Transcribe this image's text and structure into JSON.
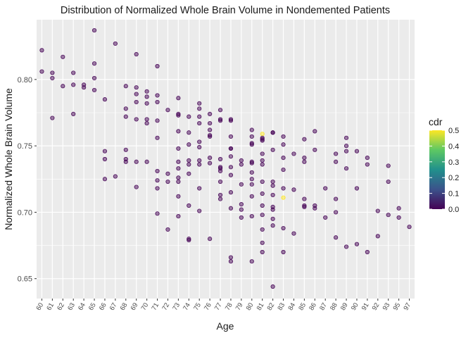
{
  "chart_data": {
    "type": "scatter",
    "title": "Distribution of Normalized Whole Brain Volume in Nondemented Patients",
    "xlabel": "Age",
    "ylabel": "Normalized Whole Brain Volume",
    "x_categories": [
      "60",
      "61",
      "62",
      "63",
      "64",
      "65",
      "66",
      "67",
      "68",
      "69",
      "70",
      "71",
      "72",
      "73",
      "74",
      "75",
      "76",
      "77",
      "78",
      "79",
      "80",
      "81",
      "82",
      "83",
      "84",
      "85",
      "86",
      "87",
      "88",
      "89",
      "90",
      "91",
      "92",
      "93",
      "95",
      "97"
    ],
    "y_ticks": [
      "0.65",
      "0.70",
      "0.75",
      "0.80"
    ],
    "y_tick_values": [
      0.65,
      0.7,
      0.75,
      0.8
    ],
    "ylim": [
      0.635,
      0.845
    ],
    "grid": true,
    "background_color": "#EBEBEB",
    "legend": {
      "title": "cdr",
      "position": "right",
      "labels": [
        "0.5",
        "0.4",
        "0.3",
        "0.2",
        "0.1",
        "0.0"
      ],
      "label_values": [
        0.5,
        0.4,
        0.3,
        0.2,
        0.1,
        0.0
      ],
      "range": [
        0,
        0.5
      ],
      "colormap": [
        "#440154",
        "#3B528B",
        "#21908C",
        "#5DC863",
        "#FDE725"
      ]
    },
    "points": [
      {
        "x": "60",
        "y": 0.822,
        "cdr": 0
      },
      {
        "x": "60",
        "y": 0.806,
        "cdr": 0
      },
      {
        "x": "61",
        "y": 0.805,
        "cdr": 0
      },
      {
        "x": "61",
        "y": 0.801,
        "cdr": 0
      },
      {
        "x": "61",
        "y": 0.771,
        "cdr": 0
      },
      {
        "x": "62",
        "y": 0.817,
        "cdr": 0
      },
      {
        "x": "62",
        "y": 0.795,
        "cdr": 0
      },
      {
        "x": "63",
        "y": 0.805,
        "cdr": 0
      },
      {
        "x": "63",
        "y": 0.796,
        "cdr": 0
      },
      {
        "x": "63",
        "y": 0.774,
        "cdr": 0
      },
      {
        "x": "64",
        "y": 0.796,
        "cdr": 0
      },
      {
        "x": "64",
        "y": 0.794,
        "cdr": 0
      },
      {
        "x": "65",
        "y": 0.837,
        "cdr": 0
      },
      {
        "x": "65",
        "y": 0.812,
        "cdr": 0
      },
      {
        "x": "65",
        "y": 0.801,
        "cdr": 0
      },
      {
        "x": "65",
        "y": 0.792,
        "cdr": 0
      },
      {
        "x": "66",
        "y": 0.785,
        "cdr": 0
      },
      {
        "x": "66",
        "y": 0.746,
        "cdr": 0
      },
      {
        "x": "66",
        "y": 0.74,
        "cdr": 0
      },
      {
        "x": "66",
        "y": 0.725,
        "cdr": 0
      },
      {
        "x": "67",
        "y": 0.827,
        "cdr": 0
      },
      {
        "x": "67",
        "y": 0.727,
        "cdr": 0
      },
      {
        "x": "68",
        "y": 0.795,
        "cdr": 0
      },
      {
        "x": "68",
        "y": 0.778,
        "cdr": 0
      },
      {
        "x": "68",
        "y": 0.772,
        "cdr": 0
      },
      {
        "x": "68",
        "y": 0.747,
        "cdr": 0
      },
      {
        "x": "68",
        "y": 0.74,
        "cdr": 0
      },
      {
        "x": "68",
        "y": 0.738,
        "cdr": 0
      },
      {
        "x": "69",
        "y": 0.819,
        "cdr": 0
      },
      {
        "x": "69",
        "y": 0.794,
        "cdr": 0
      },
      {
        "x": "69",
        "y": 0.789,
        "cdr": 0
      },
      {
        "x": "69",
        "y": 0.783,
        "cdr": 0
      },
      {
        "x": "69",
        "y": 0.77,
        "cdr": 0
      },
      {
        "x": "69",
        "y": 0.738,
        "cdr": 0
      },
      {
        "x": "69",
        "y": 0.719,
        "cdr": 0
      },
      {
        "x": "70",
        "y": 0.791,
        "cdr": 0
      },
      {
        "x": "70",
        "y": 0.787,
        "cdr": 0
      },
      {
        "x": "70",
        "y": 0.782,
        "cdr": 0
      },
      {
        "x": "70",
        "y": 0.77,
        "cdr": 0
      },
      {
        "x": "70",
        "y": 0.767,
        "cdr": 0
      },
      {
        "x": "70",
        "y": 0.738,
        "cdr": 0
      },
      {
        "x": "71",
        "y": 0.81,
        "cdr": 0
      },
      {
        "x": "71",
        "y": 0.788,
        "cdr": 0
      },
      {
        "x": "71",
        "y": 0.783,
        "cdr": 0
      },
      {
        "x": "71",
        "y": 0.769,
        "cdr": 0
      },
      {
        "x": "71",
        "y": 0.756,
        "cdr": 0
      },
      {
        "x": "71",
        "y": 0.731,
        "cdr": 0
      },
      {
        "x": "71",
        "y": 0.724,
        "cdr": 0
      },
      {
        "x": "71",
        "y": 0.718,
        "cdr": 0
      },
      {
        "x": "71",
        "y": 0.699,
        "cdr": 0
      },
      {
        "x": "72",
        "y": 0.777,
        "cdr": 0
      },
      {
        "x": "72",
        "y": 0.729,
        "cdr": 0
      },
      {
        "x": "72",
        "y": 0.723,
        "cdr": 0
      },
      {
        "x": "72",
        "y": 0.687,
        "cdr": 0
      },
      {
        "x": "73",
        "y": 0.786,
        "cdr": 0
      },
      {
        "x": "73",
        "y": 0.774,
        "cdr": 0
      },
      {
        "x": "73",
        "y": 0.773,
        "cdr": 0
      },
      {
        "x": "73",
        "y": 0.761,
        "cdr": 0
      },
      {
        "x": "73",
        "y": 0.748,
        "cdr": 0
      },
      {
        "x": "73",
        "y": 0.738,
        "cdr": 0
      },
      {
        "x": "73",
        "y": 0.733,
        "cdr": 0
      },
      {
        "x": "73",
        "y": 0.726,
        "cdr": 0
      },
      {
        "x": "73",
        "y": 0.723,
        "cdr": 0
      },
      {
        "x": "73",
        "y": 0.712,
        "cdr": 0
      },
      {
        "x": "73",
        "y": 0.697,
        "cdr": 0
      },
      {
        "x": "74",
        "y": 0.772,
        "cdr": 0
      },
      {
        "x": "74",
        "y": 0.76,
        "cdr": 0
      },
      {
        "x": "74",
        "y": 0.751,
        "cdr": 0
      },
      {
        "x": "74",
        "y": 0.739,
        "cdr": 0
      },
      {
        "x": "74",
        "y": 0.736,
        "cdr": 0
      },
      {
        "x": "74",
        "y": 0.729,
        "cdr": 0
      },
      {
        "x": "74",
        "y": 0.705,
        "cdr": 0
      },
      {
        "x": "74",
        "y": 0.68,
        "cdr": 0
      },
      {
        "x": "74",
        "y": 0.679,
        "cdr": 0
      },
      {
        "x": "75",
        "y": 0.782,
        "cdr": 0
      },
      {
        "x": "75",
        "y": 0.778,
        "cdr": 0
      },
      {
        "x": "75",
        "y": 0.772,
        "cdr": 0
      },
      {
        "x": "75",
        "y": 0.767,
        "cdr": 0
      },
      {
        "x": "75",
        "y": 0.753,
        "cdr": 0
      },
      {
        "x": "75",
        "y": 0.749,
        "cdr": 0
      },
      {
        "x": "75",
        "y": 0.739,
        "cdr": 0
      },
      {
        "x": "75",
        "y": 0.736,
        "cdr": 0
      },
      {
        "x": "75",
        "y": 0.718,
        "cdr": 0
      },
      {
        "x": "75",
        "y": 0.701,
        "cdr": 0
      },
      {
        "x": "76",
        "y": 0.774,
        "cdr": 0
      },
      {
        "x": "76",
        "y": 0.767,
        "cdr": 0
      },
      {
        "x": "76",
        "y": 0.762,
        "cdr": 0
      },
      {
        "x": "76",
        "y": 0.758,
        "cdr": 0
      },
      {
        "x": "76",
        "y": 0.757,
        "cdr": 0
      },
      {
        "x": "76",
        "y": 0.741,
        "cdr": 0
      },
      {
        "x": "76",
        "y": 0.737,
        "cdr": 0
      },
      {
        "x": "76",
        "y": 0.68,
        "cdr": 0
      },
      {
        "x": "77",
        "y": 0.777,
        "cdr": 0
      },
      {
        "x": "77",
        "y": 0.77,
        "cdr": 0
      },
      {
        "x": "77",
        "y": 0.769,
        "cdr": 0
      },
      {
        "x": "77",
        "y": 0.74,
        "cdr": 0
      },
      {
        "x": "77",
        "y": 0.734,
        "cdr": 0
      },
      {
        "x": "77",
        "y": 0.733,
        "cdr": 0
      },
      {
        "x": "77",
        "y": 0.731,
        "cdr": 0
      },
      {
        "x": "77",
        "y": 0.723,
        "cdr": 0
      },
      {
        "x": "77",
        "y": 0.713,
        "cdr": 0
      },
      {
        "x": "77",
        "y": 0.71,
        "cdr": 0
      },
      {
        "x": "78",
        "y": 0.77,
        "cdr": 0
      },
      {
        "x": "78",
        "y": 0.769,
        "cdr": 0
      },
      {
        "x": "78",
        "y": 0.757,
        "cdr": 0
      },
      {
        "x": "78",
        "y": 0.748,
        "cdr": 0
      },
      {
        "x": "78",
        "y": 0.748,
        "cdr": 0
      },
      {
        "x": "78",
        "y": 0.742,
        "cdr": 0
      },
      {
        "x": "78",
        "y": 0.734,
        "cdr": 0
      },
      {
        "x": "78",
        "y": 0.728,
        "cdr": 0
      },
      {
        "x": "78",
        "y": 0.715,
        "cdr": 0
      },
      {
        "x": "78",
        "y": 0.703,
        "cdr": 0
      },
      {
        "x": "78",
        "y": 0.666,
        "cdr": 0
      },
      {
        "x": "78",
        "y": 0.663,
        "cdr": 0
      },
      {
        "x": "79",
        "y": 0.739,
        "cdr": 0
      },
      {
        "x": "79",
        "y": 0.736,
        "cdr": 0
      },
      {
        "x": "79",
        "y": 0.721,
        "cdr": 0
      },
      {
        "x": "79",
        "y": 0.706,
        "cdr": 0
      },
      {
        "x": "79",
        "y": 0.702,
        "cdr": 0
      },
      {
        "x": "79",
        "y": 0.696,
        "cdr": 0
      },
      {
        "x": "80",
        "y": 0.762,
        "cdr": 0
      },
      {
        "x": "80",
        "y": 0.757,
        "cdr": 0
      },
      {
        "x": "80",
        "y": 0.752,
        "cdr": 0
      },
      {
        "x": "80",
        "y": 0.751,
        "cdr": 0
      },
      {
        "x": "80",
        "y": 0.738,
        "cdr": 0
      },
      {
        "x": "80",
        "y": 0.737,
        "cdr": 0
      },
      {
        "x": "80",
        "y": 0.73,
        "cdr": 0
      },
      {
        "x": "80",
        "y": 0.725,
        "cdr": 0
      },
      {
        "x": "80",
        "y": 0.721,
        "cdr": 0
      },
      {
        "x": "80",
        "y": 0.712,
        "cdr": 0
      },
      {
        "x": "80",
        "y": 0.697,
        "cdr": 0
      },
      {
        "x": "80",
        "y": 0.663,
        "cdr": 0
      },
      {
        "x": "81",
        "y": 0.759,
        "cdr": 0.5
      },
      {
        "x": "81",
        "y": 0.756,
        "cdr": 0
      },
      {
        "x": "81",
        "y": 0.755,
        "cdr": 0
      },
      {
        "x": "81",
        "y": 0.754,
        "cdr": 0
      },
      {
        "x": "81",
        "y": 0.744,
        "cdr": 0
      },
      {
        "x": "81",
        "y": 0.739,
        "cdr": 0
      },
      {
        "x": "81",
        "y": 0.736,
        "cdr": 0
      },
      {
        "x": "81",
        "y": 0.723,
        "cdr": 0
      },
      {
        "x": "81",
        "y": 0.714,
        "cdr": 0
      },
      {
        "x": "81",
        "y": 0.705,
        "cdr": 0
      },
      {
        "x": "81",
        "y": 0.698,
        "cdr": 0
      },
      {
        "x": "81",
        "y": 0.687,
        "cdr": 0
      },
      {
        "x": "81",
        "y": 0.677,
        "cdr": 0
      },
      {
        "x": "81",
        "y": 0.67,
        "cdr": 0
      },
      {
        "x": "82",
        "y": 0.76,
        "cdr": 0
      },
      {
        "x": "82",
        "y": 0.76,
        "cdr": 0
      },
      {
        "x": "82",
        "y": 0.747,
        "cdr": 0
      },
      {
        "x": "82",
        "y": 0.723,
        "cdr": 0
      },
      {
        "x": "82",
        "y": 0.72,
        "cdr": 0
      },
      {
        "x": "82",
        "y": 0.713,
        "cdr": 0
      },
      {
        "x": "82",
        "y": 0.704,
        "cdr": 0
      },
      {
        "x": "82",
        "y": 0.702,
        "cdr": 0
      },
      {
        "x": "82",
        "y": 0.695,
        "cdr": 0
      },
      {
        "x": "82",
        "y": 0.69,
        "cdr": 0
      },
      {
        "x": "82",
        "y": 0.644,
        "cdr": 0
      },
      {
        "x": "83",
        "y": 0.757,
        "cdr": 0
      },
      {
        "x": "83",
        "y": 0.751,
        "cdr": 0
      },
      {
        "x": "83",
        "y": 0.741,
        "cdr": 0
      },
      {
        "x": "83",
        "y": 0.732,
        "cdr": 0
      },
      {
        "x": "83",
        "y": 0.718,
        "cdr": 0
      },
      {
        "x": "83",
        "y": 0.711,
        "cdr": 0.5
      },
      {
        "x": "83",
        "y": 0.688,
        "cdr": 0
      },
      {
        "x": "83",
        "y": 0.67,
        "cdr": 0
      },
      {
        "x": "84",
        "y": 0.744,
        "cdr": 0
      },
      {
        "x": "84",
        "y": 0.717,
        "cdr": 0
      },
      {
        "x": "84",
        "y": 0.684,
        "cdr": 0
      },
      {
        "x": "85",
        "y": 0.755,
        "cdr": 0
      },
      {
        "x": "85",
        "y": 0.741,
        "cdr": 0
      },
      {
        "x": "85",
        "y": 0.738,
        "cdr": 0
      },
      {
        "x": "85",
        "y": 0.71,
        "cdr": 0
      },
      {
        "x": "85",
        "y": 0.705,
        "cdr": 0
      },
      {
        "x": "85",
        "y": 0.704,
        "cdr": 0
      },
      {
        "x": "86",
        "y": 0.761,
        "cdr": 0
      },
      {
        "x": "86",
        "y": 0.747,
        "cdr": 0
      },
      {
        "x": "86",
        "y": 0.705,
        "cdr": 0
      },
      {
        "x": "86",
        "y": 0.703,
        "cdr": 0
      },
      {
        "x": "87",
        "y": 0.718,
        "cdr": 0
      },
      {
        "x": "87",
        "y": 0.696,
        "cdr": 0
      },
      {
        "x": "88",
        "y": 0.744,
        "cdr": 0
      },
      {
        "x": "88",
        "y": 0.738,
        "cdr": 0
      },
      {
        "x": "88",
        "y": 0.71,
        "cdr": 0
      },
      {
        "x": "88",
        "y": 0.7,
        "cdr": 0
      },
      {
        "x": "88",
        "y": 0.681,
        "cdr": 0
      },
      {
        "x": "89",
        "y": 0.756,
        "cdr": 0
      },
      {
        "x": "89",
        "y": 0.75,
        "cdr": 0
      },
      {
        "x": "89",
        "y": 0.746,
        "cdr": 0
      },
      {
        "x": "89",
        "y": 0.733,
        "cdr": 0
      },
      {
        "x": "89",
        "y": 0.674,
        "cdr": 0
      },
      {
        "x": "90",
        "y": 0.746,
        "cdr": 0
      },
      {
        "x": "90",
        "y": 0.718,
        "cdr": 0
      },
      {
        "x": "90",
        "y": 0.676,
        "cdr": 0
      },
      {
        "x": "91",
        "y": 0.741,
        "cdr": 0
      },
      {
        "x": "91",
        "y": 0.736,
        "cdr": 0
      },
      {
        "x": "91",
        "y": 0.67,
        "cdr": 0
      },
      {
        "x": "92",
        "y": 0.701,
        "cdr": 0
      },
      {
        "x": "92",
        "y": 0.682,
        "cdr": 0
      },
      {
        "x": "93",
        "y": 0.735,
        "cdr": 0
      },
      {
        "x": "93",
        "y": 0.723,
        "cdr": 0
      },
      {
        "x": "93",
        "y": 0.698,
        "cdr": 0
      },
      {
        "x": "95",
        "y": 0.703,
        "cdr": 0
      },
      {
        "x": "95",
        "y": 0.696,
        "cdr": 0
      },
      {
        "x": "97",
        "y": 0.689,
        "cdr": 0
      }
    ]
  }
}
